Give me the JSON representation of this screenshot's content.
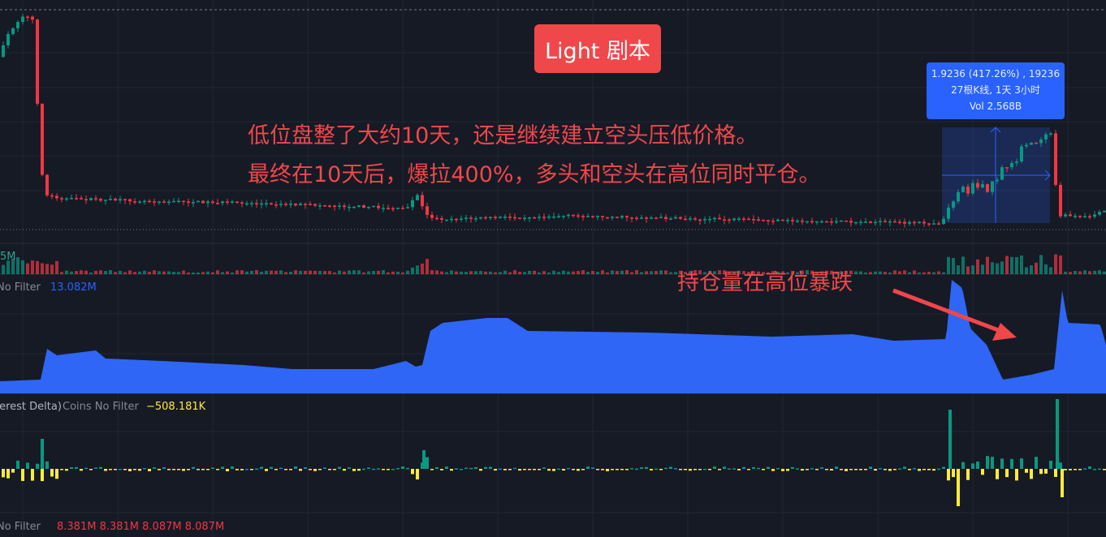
{
  "annotations": {
    "title_badge": "Light 剧本",
    "line1": "低位盘整了大约10天，还是继续建立空头压低价格。",
    "line2": "最终在10天后，爆拉400%，多头和空头在高位同时平仓。",
    "oi_note": "持仓量在高位暴跌"
  },
  "measure_tooltip": {
    "change": "1.9236 (417.26%) , 19236",
    "bars": "27根K线, 1天 3小时",
    "volume": "Vol 2.568B"
  },
  "volume_pane": {
    "value": "5M"
  },
  "oi_pane": {
    "label": "No Filter",
    "value": "13.082M"
  },
  "oi_delta_pane": {
    "label": "terest Delta)",
    "mode": "Coins No Filter",
    "value": "−508.181K"
  },
  "bottom_pane": {
    "label": "No Filter",
    "values": [
      "8.381M",
      "8.381M",
      "8.087M",
      "8.087M"
    ]
  },
  "colors": {
    "up": "#089981",
    "down": "#f23645",
    "oi": "#2962ff",
    "delta_neg": "#ffeb3b",
    "annotation": "#f0474a",
    "background": "#161a25"
  }
}
